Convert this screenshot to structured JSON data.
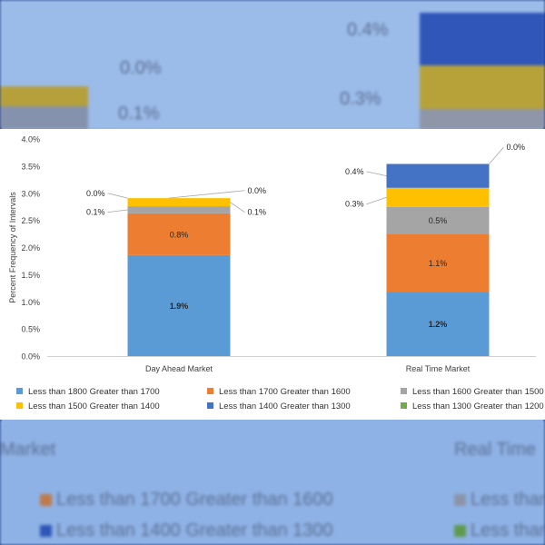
{
  "chart_data": {
    "type": "bar",
    "stacked": true,
    "categories": [
      "Day Ahead Market",
      "Real Time Market"
    ],
    "ylabel": "Percent Frequency of Intervals",
    "ylim": [
      0,
      4.0
    ],
    "yticks": [
      "0.0%",
      "0.5%",
      "1.0%",
      "1.5%",
      "2.0%",
      "2.5%",
      "3.0%",
      "3.5%",
      "4.0%"
    ],
    "grid": false,
    "legend_position": "bottom",
    "series": [
      {
        "name": "Less than 1800 Greater than 1700",
        "color": "#5b9bd5",
        "values": [
          1.86,
          1.18
        ],
        "labels": [
          "1.9%",
          "1.2%"
        ]
      },
      {
        "name": "Less than 1700 Greater than 1600",
        "color": "#ed7d31",
        "values": [
          0.77,
          1.07
        ],
        "labels": [
          "0.8%",
          "1.1%"
        ]
      },
      {
        "name": "Less than 1600 Greater than 1500",
        "color": "#a5a5a5",
        "values": [
          0.13,
          0.5
        ],
        "labels": [
          "0.1%",
          "0.5%"
        ]
      },
      {
        "name": "Less than 1500 Greater than 1400",
        "color": "#ffc000",
        "values": [
          0.15,
          0.35
        ],
        "labels": [
          "0.1%",
          "0.3%"
        ]
      },
      {
        "name": "Less than 1400 Greater than 1300",
        "color": "#4472c4",
        "values": [
          0.0,
          0.44
        ],
        "labels": [
          "0.0%",
          "0.4%"
        ]
      },
      {
        "name": "Less than 1300 Greater than 1200",
        "color": "#70ad47",
        "values": [
          0.0,
          0.0
        ],
        "labels": [
          "0.0%",
          "0.0%"
        ]
      }
    ],
    "label_placement": [
      [
        "inside",
        "inside",
        "left",
        "right",
        "left",
        "right"
      ],
      [
        "inside",
        "inside",
        "inside",
        "left",
        "left",
        "right"
      ]
    ]
  },
  "background": {
    "top_labels": [
      "0.0%",
      "0.1%",
      "0.4%",
      "0.3%"
    ],
    "bottom_labels": [
      "Market",
      "Real Time",
      "Less than 1700 Greater than 1600",
      "Less than",
      "Less than 1400 Greater than 1300",
      "Less than"
    ]
  }
}
